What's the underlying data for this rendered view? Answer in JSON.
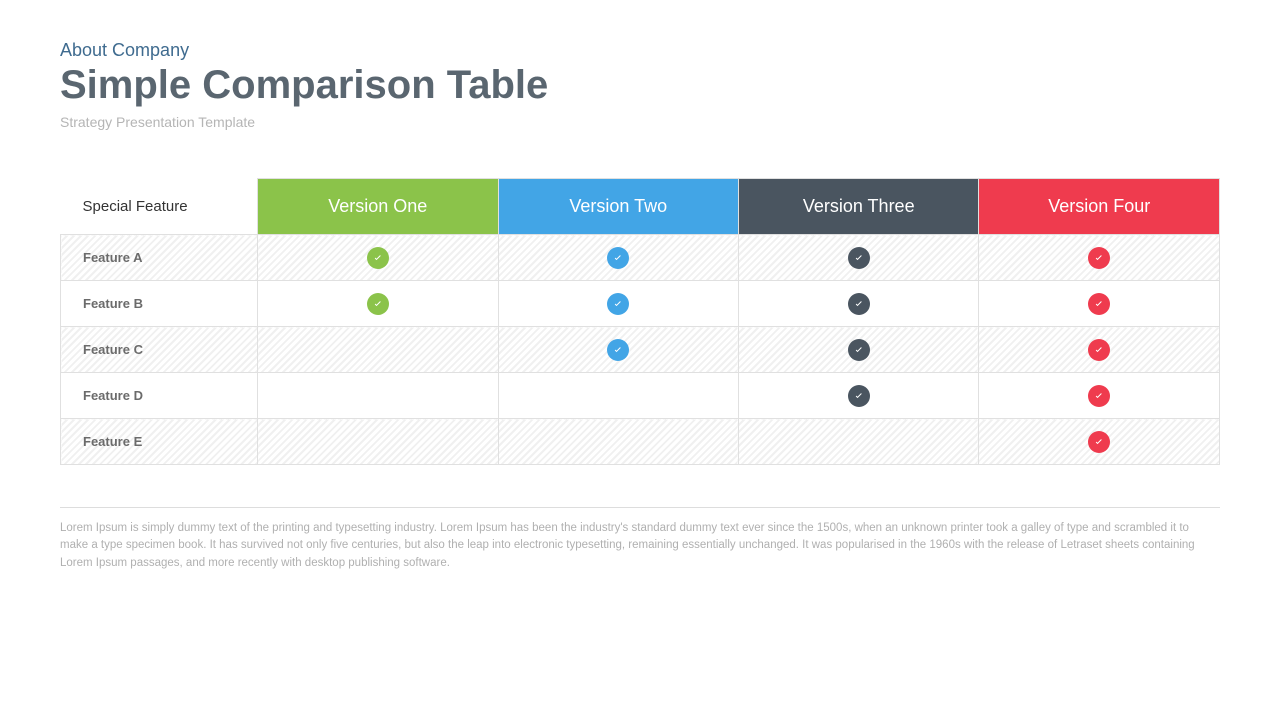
{
  "header": {
    "overline": "About Company",
    "title": "Simple Comparison Table",
    "subtitle": "Strategy Presentation Template",
    "overline_color": "#3f6b8f",
    "title_color": "#5a6670",
    "subtitle_color": "#b5b5b5"
  },
  "table": {
    "feature_header": "Special Feature",
    "columns": [
      {
        "label": "Version One",
        "bg": "#8bc34a"
      },
      {
        "label": "Version Two",
        "bg": "#42a5e6"
      },
      {
        "label": "Version Three",
        "bg": "#4a5560"
      },
      {
        "label": "Version Four",
        "bg": "#ef3b4e"
      }
    ],
    "check_colors": [
      "#8bc34a",
      "#42a5e6",
      "#4a5560",
      "#ef3b4e"
    ],
    "rows": [
      {
        "label": "Feature A",
        "checks": [
          true,
          true,
          true,
          true
        ],
        "hatched": true
      },
      {
        "label": "Feature B",
        "checks": [
          true,
          true,
          true,
          true
        ],
        "hatched": false
      },
      {
        "label": "Feature C",
        "checks": [
          false,
          true,
          true,
          true
        ],
        "hatched": true
      },
      {
        "label": "Feature D",
        "checks": [
          false,
          false,
          true,
          true
        ],
        "hatched": false
      },
      {
        "label": "Feature E",
        "checks": [
          false,
          false,
          false,
          true
        ],
        "hatched": true
      }
    ],
    "col_width_feature_pct": 17,
    "col_width_version_pct": 20.75
  },
  "footer": {
    "text": "Lorem Ipsum is simply dummy text of the printing and typesetting industry. Lorem Ipsum has been the industry's standard dummy text ever since the 1500s, when an unknown printer took a galley of type and scrambled it to make a type specimen book. It has survived not only five centuries, but also the leap into electronic typesetting, remaining essentially unchanged. It was popularised in the 1960s with the release of Letraset sheets containing Lorem Ipsum passages, and more recently with desktop publishing software."
  }
}
